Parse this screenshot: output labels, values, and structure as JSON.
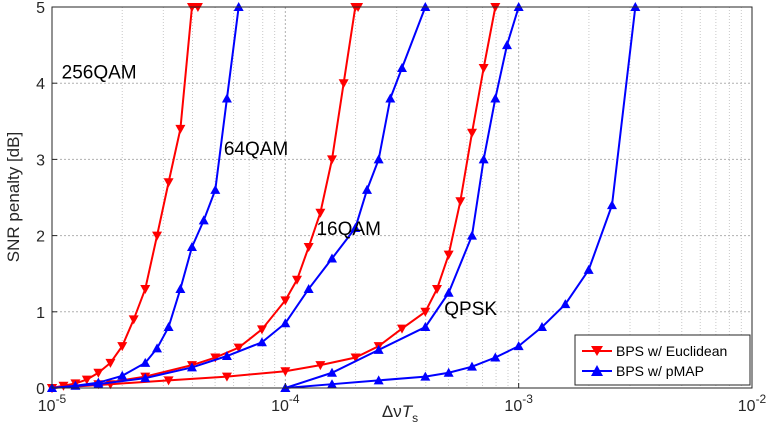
{
  "chart_data": {
    "type": "line",
    "xscale": "log",
    "xlim": [
      1e-05,
      0.01
    ],
    "ylim": [
      0,
      5
    ],
    "xlabel_main": "Δν",
    "xlabel_T": "T",
    "xlabel_sub": "s",
    "ylabel": "SNR penalty [dB]",
    "xticks": [
      {
        "value": 1e-05,
        "base": "10",
        "exp": "-5"
      },
      {
        "value": 0.0001,
        "base": "10",
        "exp": "-4"
      },
      {
        "value": 0.001,
        "base": "10",
        "exp": "-3"
      },
      {
        "value": 0.01,
        "base": "10",
        "exp": "-2"
      }
    ],
    "yticks": [
      "0",
      "1",
      "2",
      "3",
      "4",
      "5"
    ],
    "grid": true,
    "legend_position": "bottom-right",
    "annotations": [
      {
        "text": "256QAM",
        "x": 1.1e-05,
        "y": 4.06
      },
      {
        "text": "64QAM",
        "x": 5.45e-05,
        "y": 3.06
      },
      {
        "text": "16QAM",
        "x": 0.000136,
        "y": 2.01
      },
      {
        "text": "QPSK",
        "x": 0.00048,
        "y": 0.96
      }
    ],
    "series": [
      {
        "name": "BPS w/ Euclidean",
        "color": "#ff0000",
        "marker": "triangle-down",
        "groups": [
          {
            "x": [
              1e-05,
              1.12e-05,
              1.26e-05,
              1.41e-05,
              1.58e-05,
              1.78e-05,
              2e-05,
              2.24e-05,
              2.51e-05,
              2.82e-05,
              3.16e-05,
              3.55e-05,
              3.98e-05,
              4.22e-05
            ],
            "y": [
              0.0,
              0.03,
              0.06,
              0.11,
              0.2,
              0.33,
              0.55,
              0.9,
              1.3,
              2.0,
              2.7,
              3.4,
              5.0,
              5.0
            ]
          },
          {
            "x": [
              1e-05,
              1.58e-05,
              2.51e-05,
              3.98e-05,
              5.01e-05,
              6.31e-05,
              7.94e-05,
              0.0001,
              0.0001122,
              0.0001259,
              0.0001413,
              0.0001585,
              0.0001778,
              0.0001995,
              0.000205
            ],
            "y": [
              0.0,
              0.05,
              0.15,
              0.3,
              0.4,
              0.53,
              0.77,
              1.15,
              1.42,
              1.85,
              2.3,
              3.0,
              4.0,
              5.0,
              5.0
            ]
          },
          {
            "x": [
              1e-05,
              1.78e-05,
              3.16e-05,
              5.62e-05,
              0.0001,
              0.0001413,
              0.0002,
              0.0002512,
              0.0003162,
              0.0003981,
              0.0004467,
              0.0005012,
              0.0005623,
              0.000631,
              0.0007079,
              0.0007943
            ],
            "y": [
              0.0,
              0.05,
              0.1,
              0.15,
              0.22,
              0.3,
              0.4,
              0.55,
              0.78,
              1.0,
              1.3,
              1.75,
              2.45,
              3.35,
              4.2,
              5.0
            ]
          }
        ]
      },
      {
        "name": "BPS w/ pMAP",
        "color": "#0000ff",
        "marker": "triangle-up",
        "groups": [
          {
            "x": [
              1e-05,
              1.26e-05,
              1.58e-05,
              2e-05,
              2.51e-05,
              2.82e-05,
              3.16e-05,
              3.55e-05,
              3.98e-05,
              4.47e-05,
              5.01e-05,
              5.62e-05,
              6.31e-05
            ],
            "y": [
              0.0,
              0.03,
              0.07,
              0.16,
              0.33,
              0.52,
              0.8,
              1.3,
              1.85,
              2.2,
              2.6,
              3.8,
              5.0
            ]
          },
          {
            "x": [
              1e-05,
              1.58e-05,
              2.51e-05,
              3.98e-05,
              5.62e-05,
              7.94e-05,
              0.0001,
              0.0001259,
              0.0001585,
              0.0001995,
              0.0002239,
              0.0002512,
              0.0002818,
              0.0003162,
              0.0003981
            ],
            "y": [
              0.0,
              0.05,
              0.13,
              0.27,
              0.42,
              0.6,
              0.85,
              1.3,
              1.7,
              2.1,
              2.6,
              3.0,
              3.8,
              4.2,
              5.0
            ]
          },
          {
            "x": [
              0.0001,
              0.0001585,
              0.0002512,
              0.0003981,
              0.0005012,
              0.0006309,
              0.0007079,
              0.0007943,
              0.0008913,
              0.001
            ],
            "y": [
              0.0,
              0.2,
              0.5,
              0.8,
              1.25,
              2.0,
              3.0,
              3.8,
              4.5,
              5.0
            ]
          },
          {
            "x": [
              0.0001,
              0.0001585,
              0.0002512,
              0.0003981,
              0.0005012,
              0.0006309,
              0.0007943,
              0.001,
              0.0012589,
              0.0015849,
              0.0019953,
              0.0025119,
              0.0031623
            ],
            "y": [
              0.0,
              0.05,
              0.1,
              0.15,
              0.2,
              0.28,
              0.4,
              0.55,
              0.8,
              1.1,
              1.55,
              2.4,
              5.0
            ]
          }
        ]
      }
    ]
  }
}
